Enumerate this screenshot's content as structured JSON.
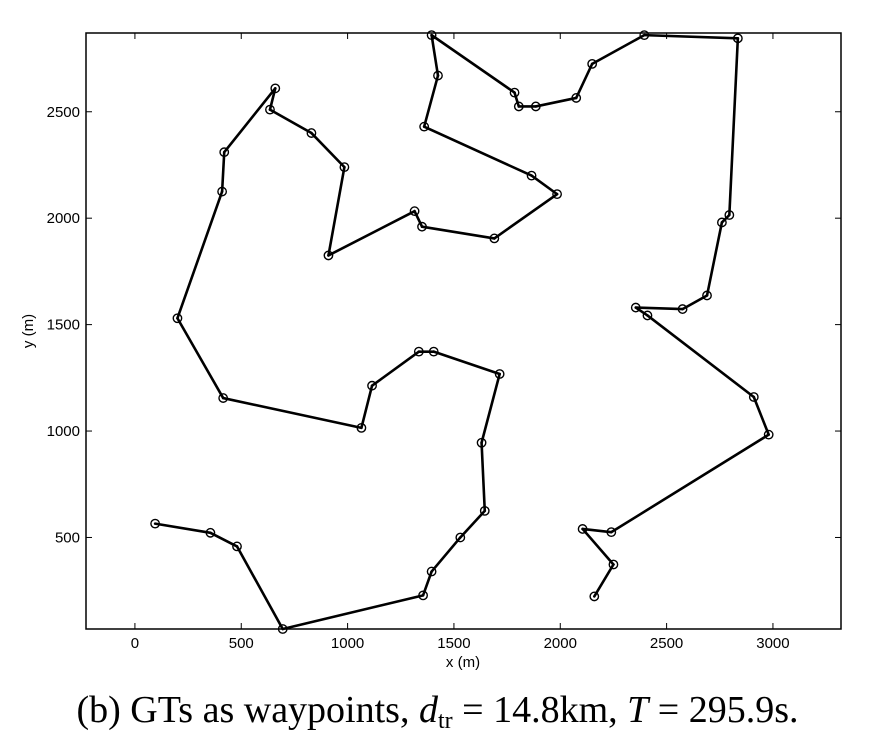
{
  "chart_data": {
    "type": "line",
    "xlabel": "x (m)",
    "ylabel": "y (m)",
    "xlim": [
      -230,
      3320
    ],
    "ylim": [
      70,
      2870
    ],
    "xticks": [
      0,
      500,
      1000,
      1500,
      2000,
      2500,
      3000
    ],
    "yticks": [
      500,
      1000,
      1500,
      2000,
      2500
    ],
    "grid": false,
    "legend": "none",
    "line_color": "#000000",
    "marker": "circle",
    "points": [
      [
        95,
        565
      ],
      [
        355,
        522
      ],
      [
        480,
        458
      ],
      [
        695,
        70
      ],
      [
        1355,
        228
      ],
      [
        1395,
        340
      ],
      [
        1530,
        500
      ],
      [
        1645,
        625
      ],
      [
        1630,
        945
      ],
      [
        1715,
        1268
      ],
      [
        1405,
        1373
      ],
      [
        1335,
        1373
      ],
      [
        1115,
        1213
      ],
      [
        1065,
        1015
      ],
      [
        415,
        1155
      ],
      [
        200,
        1530
      ],
      [
        410,
        2125
      ],
      [
        420,
        2310
      ],
      [
        660,
        2610
      ],
      [
        635,
        2510
      ],
      [
        830,
        2400
      ],
      [
        985,
        2240
      ],
      [
        910,
        1825
      ],
      [
        1315,
        2033
      ],
      [
        1350,
        1960
      ],
      [
        1690,
        1905
      ],
      [
        1985,
        2113
      ],
      [
        1865,
        2200
      ],
      [
        1360,
        2430
      ],
      [
        1425,
        2670
      ],
      [
        1395,
        2860
      ],
      [
        1785,
        2590
      ],
      [
        1805,
        2525
      ],
      [
        1885,
        2525
      ],
      [
        2075,
        2565
      ],
      [
        2150,
        2725
      ],
      [
        2395,
        2860
      ],
      [
        2835,
        2845
      ],
      [
        2795,
        2015
      ],
      [
        2760,
        1980
      ],
      [
        2690,
        1637
      ],
      [
        2575,
        1573
      ],
      [
        2355,
        1580
      ],
      [
        2410,
        1543
      ],
      [
        2910,
        1160
      ],
      [
        2980,
        983
      ],
      [
        2240,
        525
      ],
      [
        2105,
        540
      ],
      [
        2250,
        373
      ],
      [
        2160,
        223
      ]
    ]
  },
  "caption": {
    "prefix": "(b) GTs as waypoints, ",
    "d_symbol": "d",
    "d_subscript": "tr",
    "d_value": " = 14.8km, ",
    "t_symbol": "T",
    "t_value": " = 295.9s."
  }
}
